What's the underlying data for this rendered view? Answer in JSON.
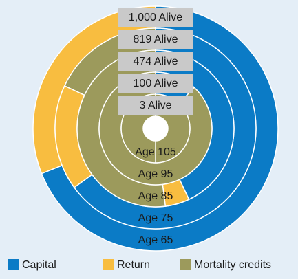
{
  "chart_data": {
    "type": "donut",
    "categories": [
      "Age 65",
      "Age 75",
      "Age 85",
      "Age 95",
      "Age 105"
    ],
    "ring_labels": [
      "1,000 Alive",
      "819 Alive",
      "474 Alive",
      "100 Alive",
      "3 Alive"
    ],
    "series": [
      {
        "name": "Capital",
        "color": "#0b7bc6",
        "values": [
          69,
          65,
          43,
          12,
          0
        ]
      },
      {
        "name": "Return",
        "color": "#f8bd40",
        "values": [
          31,
          17,
          5,
          0,
          0
        ]
      },
      {
        "name": "Mortality credits",
        "color": "#9c9a5c",
        "values": [
          0,
          18,
          52,
          88,
          100
        ]
      }
    ]
  }
}
